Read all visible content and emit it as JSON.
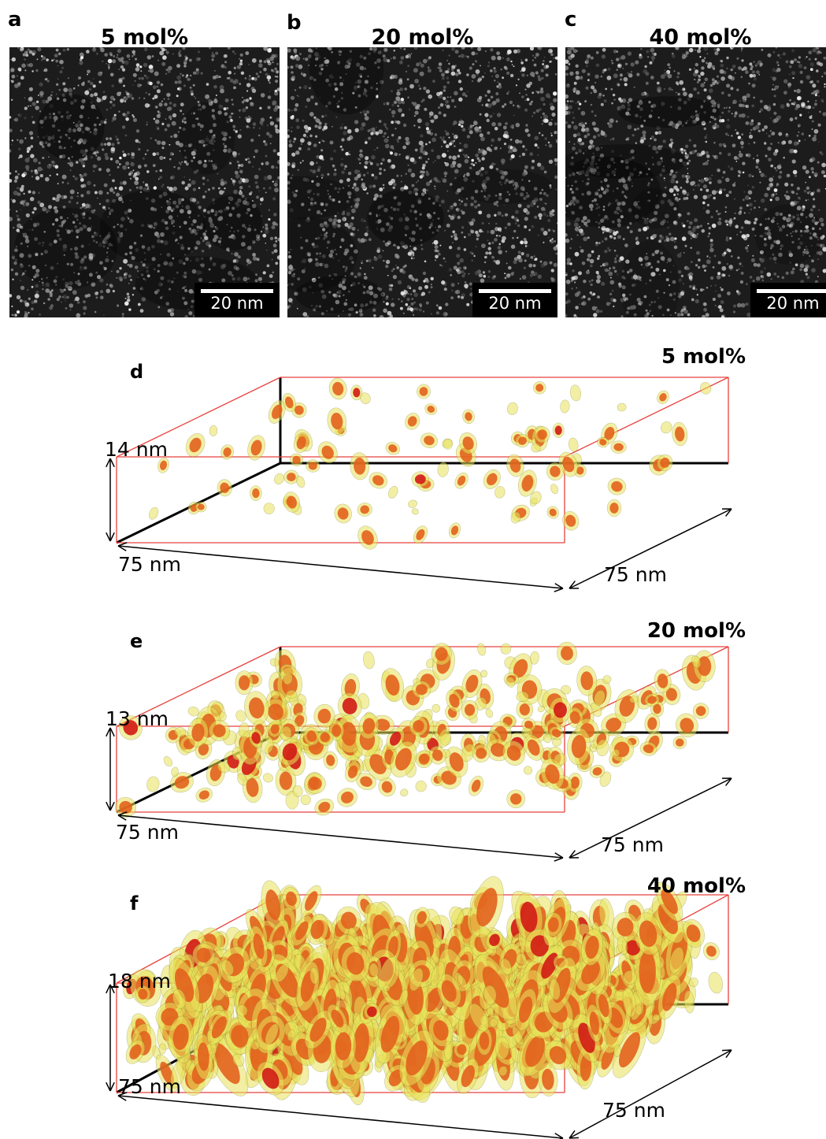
{
  "figure": {
    "top_panels": [
      {
        "letter": "a",
        "title": "5 mol%",
        "scalebar": "20 nm",
        "density": 1700
      },
      {
        "letter": "b",
        "title": "20 mol%",
        "scalebar": "20 nm",
        "density": 1700
      },
      {
        "letter": "c",
        "title": "40 mol%",
        "scalebar": "20 nm",
        "density": 1700
      }
    ],
    "volume_panels": [
      {
        "letter": "d",
        "title": "5 mol%",
        "height_label": "14 nm",
        "x_label": "75 nm",
        "y_label": "75 nm",
        "blob_count": 95
      },
      {
        "letter": "e",
        "title": "20 mol%",
        "height_label": "13 nm",
        "x_label": "75 nm",
        "y_label": "75 nm",
        "blob_count": 260
      },
      {
        "letter": "f",
        "title": "40 mol%",
        "height_label": "18 nm",
        "x_label": "75 nm",
        "y_label": "75 nm",
        "blob_count": 900
      }
    ],
    "colors": {
      "box_edge": "#e8413c",
      "blob_core": "#e2621d",
      "blob_shell": "#e9e35a",
      "blob_dark": "#d21a14"
    }
  }
}
